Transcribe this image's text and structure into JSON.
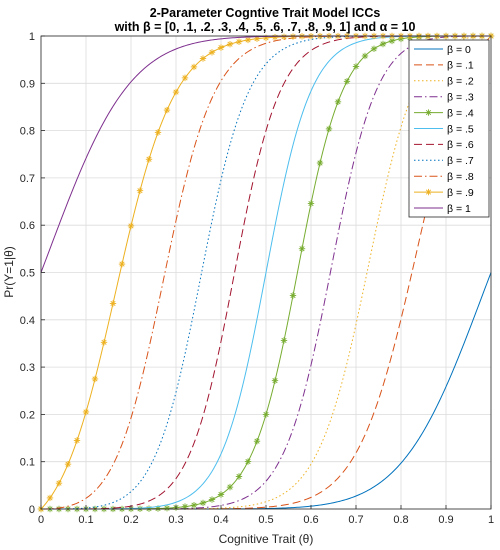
{
  "chart_data": {
    "type": "line",
    "title_line1": "2-Parameter Cogntive Trait Model ICCs",
    "title_line2": "with β = [0, .1, .2, .3, .4, .5, .6, .7, .8, .9, 1] and α = 10",
    "xlabel": "Cognitive Trait (θ)",
    "ylabel": "Pr(Y=1|θ)",
    "xlim": [
      0,
      1
    ],
    "ylim": [
      0,
      1
    ],
    "xticks": [
      "0",
      "0.1",
      "0.2",
      "0.3",
      "0.4",
      "0.5",
      "0.6",
      "0.7",
      "0.8",
      "0.9",
      "1"
    ],
    "yticks": [
      "0",
      "0.1",
      "0.2",
      "0.3",
      "0.4",
      "0.5",
      "0.6",
      "0.7",
      "0.8",
      "0.9",
      "1"
    ],
    "grid": true,
    "legend_position": "top-right",
    "alpha": 10,
    "x": [
      0,
      0.02,
      0.04,
      0.06,
      0.08,
      0.1,
      0.12,
      0.14,
      0.16,
      0.18,
      0.2,
      0.22,
      0.24,
      0.26,
      0.28,
      0.3,
      0.32,
      0.34,
      0.36,
      0.38,
      0.4,
      0.42,
      0.44,
      0.46,
      0.48,
      0.5,
      0.52,
      0.54,
      0.56,
      0.58,
      0.6,
      0.62,
      0.64,
      0.66,
      0.68,
      0.7,
      0.72,
      0.74,
      0.76,
      0.78,
      0.8,
      0.82,
      0.84,
      0.86,
      0.88,
      0.9,
      0.92,
      0.94,
      0.96,
      0.98,
      1
    ],
    "series": [
      {
        "name": "β = 0",
        "beta": 0,
        "color": "#0072BD",
        "dash": "",
        "marker": ""
      },
      {
        "name": "β = .1",
        "beta": 0.1,
        "color": "#D95319",
        "dash": "8,4",
        "marker": ""
      },
      {
        "name": "β = .2",
        "beta": 0.2,
        "color": "#EDB120",
        "dash": "1.5,2.5",
        "marker": ""
      },
      {
        "name": "β = .3",
        "beta": 0.3,
        "color": "#7E2F8E",
        "dash": "8,3,1.5,3",
        "marker": ""
      },
      {
        "name": "β = .4",
        "beta": 0.4,
        "color": "#77AC30",
        "dash": "",
        "marker": "asterisk"
      },
      {
        "name": "β = .5",
        "beta": 0.5,
        "color": "#4DBEEE",
        "dash": "",
        "marker": ""
      },
      {
        "name": "β = .6",
        "beta": 0.6,
        "color": "#A2142F",
        "dash": "8,4",
        "marker": ""
      },
      {
        "name": "β = .7",
        "beta": 0.7,
        "color": "#0072BD",
        "dash": "1.5,2.5",
        "marker": ""
      },
      {
        "name": "β = .8",
        "beta": 0.8,
        "color": "#D95319",
        "dash": "8,3,1.5,3",
        "marker": ""
      },
      {
        "name": "β = .9",
        "beta": 0.9,
        "color": "#EDB120",
        "dash": "",
        "marker": "asterisk"
      },
      {
        "name": "β = 1",
        "beta": 1,
        "color": "#7E2F8E",
        "dash": "",
        "marker": ""
      }
    ]
  }
}
